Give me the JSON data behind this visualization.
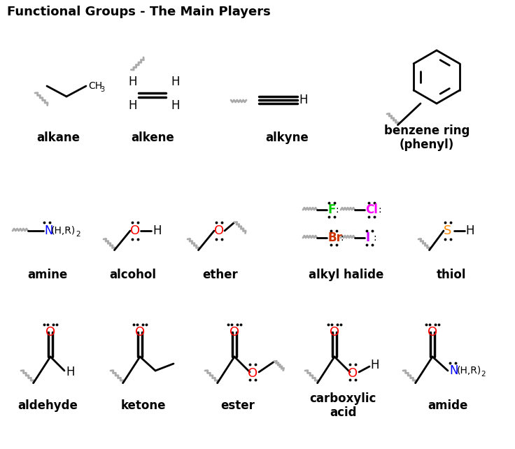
{
  "title": "Functional Groups - The Main Players",
  "title_fontsize": 13,
  "title_fontweight": "bold",
  "background_color": "#ffffff",
  "gray": "#aaaaaa",
  "black": "#000000",
  "red": "#ff0000",
  "blue": "#0000ff",
  "green": "#00cc00",
  "magenta": "#ff00ff",
  "brown": "#cc3300",
  "purple": "#cc00ff",
  "orange": "#ff8800",
  "labels": {
    "alkane": "alkane",
    "alkene": "alkene",
    "alkyne": "alkyne",
    "benzene": "benzene ring\n(phenyl)",
    "amine": "amine",
    "alcohol": "alcohol",
    "ether": "ether",
    "alkyl_halide": "alkyl halide",
    "thiol": "thiol",
    "aldehyde": "aldehyde",
    "ketone": "ketone",
    "ester": "ester",
    "carboxylic": "carboxylic\nacid",
    "amide": "amide"
  },
  "fig_w": 7.36,
  "fig_h": 6.42,
  "dpi": 100
}
